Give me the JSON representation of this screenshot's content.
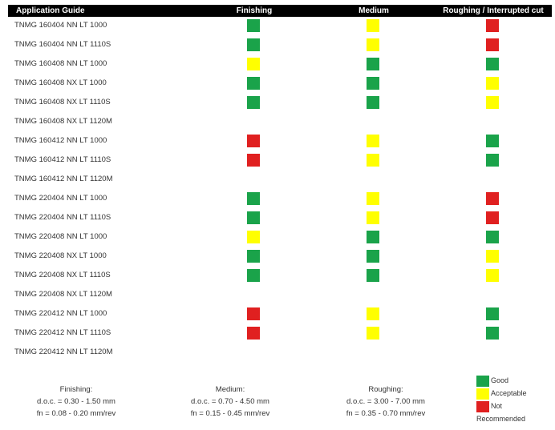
{
  "colors": {
    "good": "#1aa34a",
    "acceptable": "#ffff00",
    "not": "#e02020",
    "header_bg": "#000000"
  },
  "header": {
    "col0": "Application Guide",
    "col1": "Finishing",
    "col2": "Medium",
    "col3": "Roughing / Interrupted cut"
  },
  "rows": [
    {
      "label": "TNMG 160404 NN LT 1000",
      "finishing": "good",
      "medium": "acceptable",
      "roughing": "not"
    },
    {
      "label": "TNMG 160404 NN LT 1110S",
      "finishing": "good",
      "medium": "acceptable",
      "roughing": "not"
    },
    {
      "label": "TNMG 160408 NN LT 1000",
      "finishing": "acceptable",
      "medium": "good",
      "roughing": "good"
    },
    {
      "label": "TNMG 160408 NX LT 1000",
      "finishing": "good",
      "medium": "good",
      "roughing": "acceptable"
    },
    {
      "label": "TNMG 160408 NX LT 1110S",
      "finishing": "good",
      "medium": "good",
      "roughing": "acceptable"
    },
    {
      "label": "TNMG 160408 NX LT 1120M",
      "finishing": "",
      "medium": "",
      "roughing": ""
    },
    {
      "label": "TNMG 160412 NN LT 1000",
      "finishing": "not",
      "medium": "acceptable",
      "roughing": "good"
    },
    {
      "label": "TNMG 160412 NN LT 1110S",
      "finishing": "not",
      "medium": "acceptable",
      "roughing": "good"
    },
    {
      "label": "TNMG 160412 NN LT 1120M",
      "finishing": "",
      "medium": "",
      "roughing": ""
    },
    {
      "label": "TNMG 220404 NN LT 1000",
      "finishing": "good",
      "medium": "acceptable",
      "roughing": "not"
    },
    {
      "label": "TNMG 220404 NN LT 1110S",
      "finishing": "good",
      "medium": "acceptable",
      "roughing": "not"
    },
    {
      "label": "TNMG 220408 NN LT 1000",
      "finishing": "acceptable",
      "medium": "good",
      "roughing": "good"
    },
    {
      "label": "TNMG 220408 NX LT 1000",
      "finishing": "good",
      "medium": "good",
      "roughing": "acceptable"
    },
    {
      "label": "TNMG 220408 NX LT 1110S",
      "finishing": "good",
      "medium": "good",
      "roughing": "acceptable"
    },
    {
      "label": "TNMG 220408 NX LT 1120M",
      "finishing": "",
      "medium": "",
      "roughing": ""
    },
    {
      "label": "TNMG 220412 NN LT 1000",
      "finishing": "not",
      "medium": "acceptable",
      "roughing": "good"
    },
    {
      "label": "TNMG 220412 NN LT 1110S",
      "finishing": "not",
      "medium": "acceptable",
      "roughing": "good"
    },
    {
      "label": "TNMG 220412 NN LT 1120M",
      "finishing": "",
      "medium": "",
      "roughing": ""
    }
  ],
  "footer": {
    "finishing": {
      "title": "Finishing:",
      "doc": "d.o.c. = 0.30 - 1.50 mm",
      "fn": "fn = 0.08 - 0.20 mm/rev"
    },
    "medium": {
      "title": "Medium:",
      "doc": "d.o.c. = 0.70 - 4.50 mm",
      "fn": "fn = 0.15 - 0.45 mm/rev"
    },
    "roughing": {
      "title": "Roughing:",
      "doc": "d.o.c. = 3.00 - 7.00 mm",
      "fn": "fn = 0.35 - 0.70 mm/rev"
    }
  },
  "legend": {
    "good": "Good",
    "acceptable": "Acceptable",
    "not_line1": "Not",
    "not_line2": "Recommended"
  }
}
